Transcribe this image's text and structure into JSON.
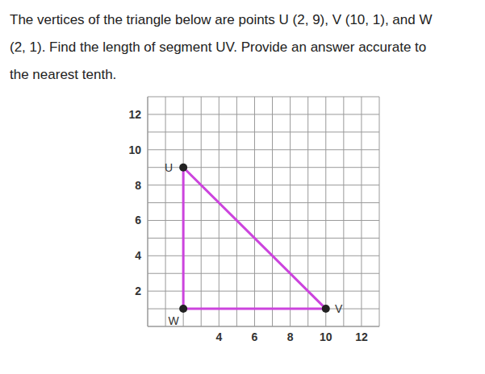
{
  "question": [
    "The vertices of the triangle below are points U (2, 9), V (10, 1), and W",
    "(2, 1). Find the length of segment UV. Provide an answer accurate to",
    "the nearest tenth."
  ],
  "chart_data": {
    "type": "polygon",
    "points": [
      {
        "name": "U",
        "x": 2,
        "y": 9
      },
      {
        "name": "V",
        "x": 10,
        "y": 1
      },
      {
        "name": "W",
        "x": 2,
        "y": 1
      }
    ],
    "color": "#cc44dd",
    "marker": "circle",
    "xlim": [
      0,
      13
    ],
    "ylim": [
      0,
      13
    ],
    "xticks": [
      4,
      6,
      8,
      10,
      12
    ],
    "yticks": [
      2,
      4,
      6,
      8,
      10,
      12
    ],
    "grid": true
  }
}
